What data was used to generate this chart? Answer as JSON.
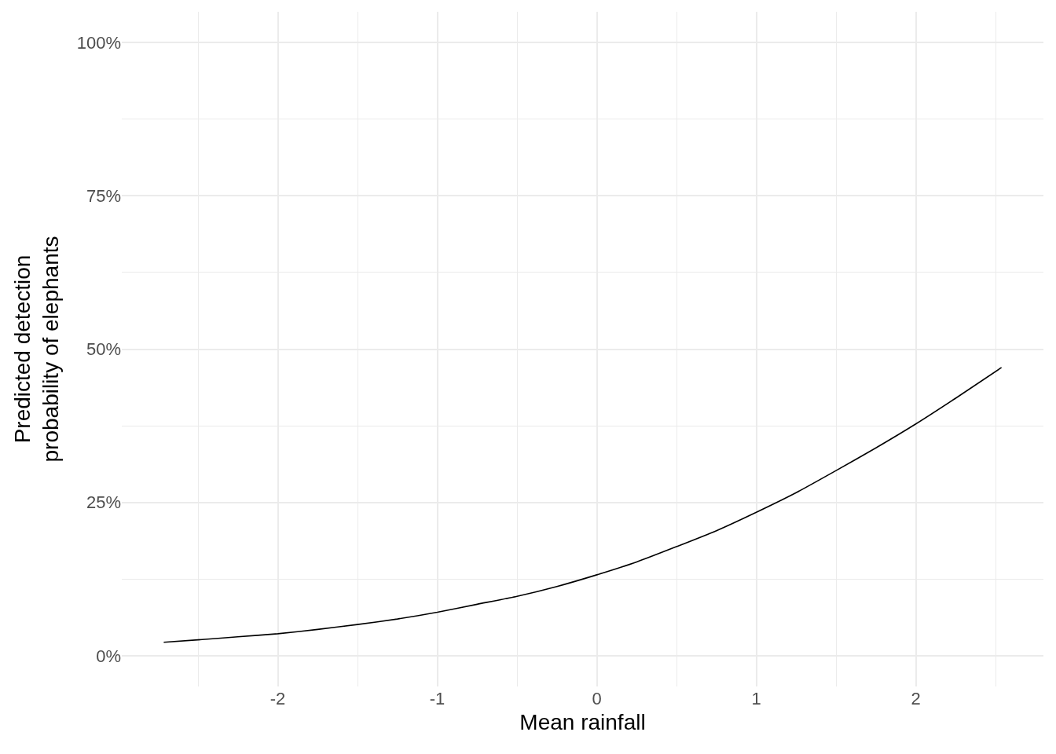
{
  "chart_data": {
    "type": "line",
    "xlabel": "Mean rainfall",
    "ylabel": "Predicted detection\nprobability of elephants",
    "x": [
      -2.715,
      -2.5,
      -2.25,
      -2.0,
      -1.75,
      -1.5,
      -1.25,
      -1.0,
      -0.75,
      -0.5,
      -0.25,
      0.0,
      0.25,
      0.5,
      0.75,
      1.0,
      1.25,
      1.5,
      1.75,
      2.0,
      2.25,
      2.537
    ],
    "series": [
      {
        "color": "#000000",
        "values": [
          2.2,
          2.6,
          3.1,
          3.6,
          4.3,
          5.1,
          6.0,
          7.1,
          8.4,
          9.7,
          11.3,
          13.2,
          15.3,
          17.8,
          20.4,
          23.4,
          26.6,
          30.2,
          33.9,
          37.8,
          42.0,
          47.0
        ]
      }
    ],
    "xlim": [
      -2.978,
      2.8
    ],
    "ylim": [
      -5,
      105
    ],
    "xticks": [
      {
        "value": -2.5,
        "label": null
      },
      -2,
      {
        "value": -1.5,
        "label": null
      },
      -1,
      {
        "value": -0.5,
        "label": null
      },
      0,
      {
        "value": 0.5,
        "label": null
      },
      1,
      {
        "value": 1.5,
        "label": null
      },
      2,
      {
        "value": 2.5,
        "label": null
      }
    ],
    "yticks": [
      {
        "value": 0,
        "label": "0%"
      },
      {
        "value": 12.5,
        "label": null
      },
      {
        "value": 25,
        "label": "25%"
      },
      {
        "value": 37.5,
        "label": null
      },
      {
        "value": 50,
        "label": "50%"
      },
      {
        "value": 62.5,
        "label": null
      },
      {
        "value": 75,
        "label": "75%"
      },
      {
        "value": 87.5,
        "label": null
      },
      {
        "value": 100,
        "label": "100%"
      }
    ],
    "grid": true
  }
}
